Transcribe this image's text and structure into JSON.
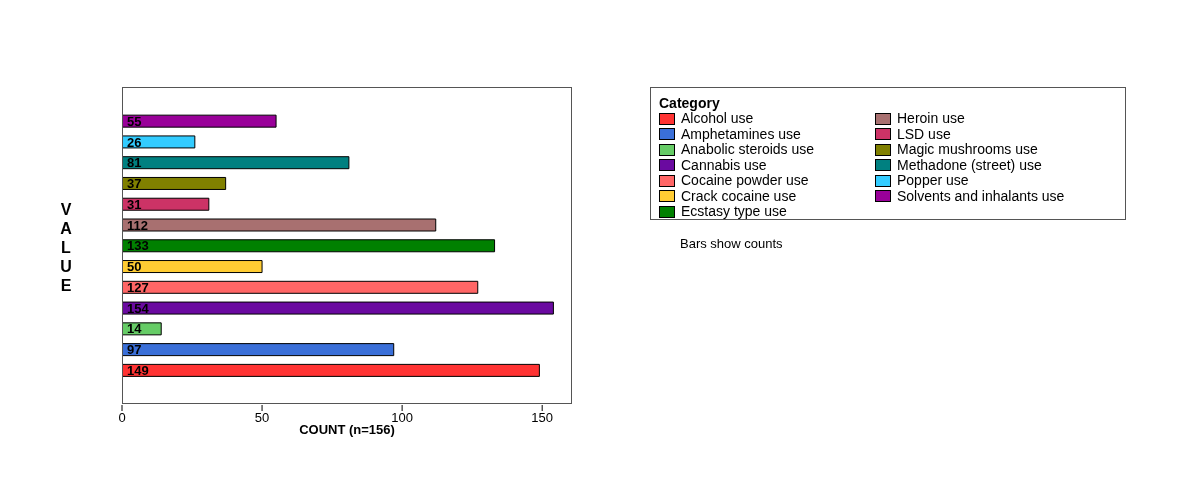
{
  "chart_data": {
    "type": "bar",
    "orientation": "horizontal",
    "stacked": true,
    "categories": [
      null,
      null,
      null,
      null,
      null,
      null,
      null,
      null,
      null,
      null,
      null,
      null,
      null
    ],
    "series": [
      {
        "name": "Alcohol use",
        "color": "#ff3333",
        "values": [
          null,
          null,
          null,
          null,
          null,
          null,
          null,
          null,
          null,
          null,
          null,
          null,
          149
        ]
      },
      {
        "name": "Amphetamines use",
        "color": "#3a6fd8",
        "values": [
          null,
          null,
          null,
          null,
          null,
          null,
          null,
          null,
          null,
          null,
          null,
          97,
          null
        ]
      },
      {
        "name": "Anabolic steroids use",
        "color": "#66cc66",
        "values": [
          null,
          null,
          null,
          null,
          null,
          null,
          null,
          null,
          null,
          null,
          14,
          null,
          null
        ]
      },
      {
        "name": "Cannabis use",
        "color": "#6a0aa0",
        "values": [
          null,
          null,
          null,
          null,
          null,
          null,
          null,
          null,
          null,
          154,
          null,
          null,
          null
        ]
      },
      {
        "name": "Cocaine powder use",
        "color": "#ff6666",
        "values": [
          null,
          null,
          null,
          null,
          null,
          null,
          null,
          null,
          127,
          null,
          null,
          null,
          null
        ]
      },
      {
        "name": "Crack cocaine use",
        "color": "#ffcc33",
        "values": [
          null,
          null,
          null,
          null,
          null,
          null,
          null,
          50,
          null,
          null,
          null,
          null,
          null
        ]
      },
      {
        "name": "Ecstasy type use",
        "color": "#008000",
        "values": [
          null,
          null,
          null,
          null,
          null,
          null,
          133,
          null,
          null,
          null,
          null,
          null,
          null
        ]
      },
      {
        "name": "Heroin use",
        "color": "#a87070",
        "values": [
          null,
          null,
          null,
          null,
          null,
          112,
          null,
          null,
          null,
          null,
          null,
          null,
          null
        ]
      },
      {
        "name": "LSD use",
        "color": "#cc3366",
        "values": [
          null,
          null,
          null,
          null,
          31,
          null,
          null,
          null,
          null,
          null,
          null,
          null,
          null
        ]
      },
      {
        "name": "Magic mushrooms use",
        "color": "#808000",
        "values": [
          null,
          null,
          null,
          37,
          null,
          null,
          null,
          null,
          null,
          null,
          null,
          null,
          null
        ]
      },
      {
        "name": "Methadone (street) use",
        "color": "#008080",
        "values": [
          null,
          null,
          81,
          null,
          null,
          null,
          null,
          null,
          null,
          null,
          null,
          null,
          null
        ]
      },
      {
        "name": "Popper use",
        "color": "#33ccff",
        "values": [
          null,
          26,
          null,
          null,
          null,
          null,
          null,
          null,
          null,
          null,
          null,
          null,
          null
        ]
      },
      {
        "name": "Solvents and inhalants use",
        "color": "#990099",
        "values": [
          55,
          null,
          null,
          null,
          null,
          null,
          null,
          null,
          null,
          null,
          null,
          null,
          null
        ]
      }
    ],
    "xlim": [
      0,
      161
    ],
    "xticks": [
      0,
      50,
      100,
      150
    ],
    "xlabel": "COUNT (n=156)",
    "ylabel": "VALUE",
    "legend": "right",
    "legend_title": "Category",
    "annotations": [
      "Bars show counts"
    ],
    "data_labels": true,
    "tick_labels": "x"
  }
}
